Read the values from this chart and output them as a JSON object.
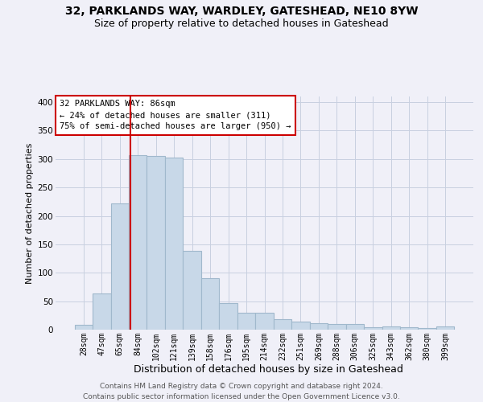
{
  "title": "32, PARKLANDS WAY, WARDLEY, GATESHEAD, NE10 8YW",
  "subtitle": "Size of property relative to detached houses in Gateshead",
  "xlabel": "Distribution of detached houses by size in Gateshead",
  "ylabel": "Number of detached properties",
  "categories": [
    "28sqm",
    "47sqm",
    "65sqm",
    "84sqm",
    "102sqm",
    "121sqm",
    "139sqm",
    "158sqm",
    "176sqm",
    "195sqm",
    "214sqm",
    "232sqm",
    "251sqm",
    "269sqm",
    "288sqm",
    "306sqm",
    "325sqm",
    "343sqm",
    "362sqm",
    "380sqm",
    "399sqm"
  ],
  "values": [
    8,
    63,
    222,
    307,
    305,
    302,
    139,
    90,
    47,
    30,
    30,
    19,
    14,
    11,
    10,
    10,
    4,
    5,
    4,
    3,
    5
  ],
  "bar_color": "#c8d8e8",
  "bar_edgecolor": "#a0b8cc",
  "bar_linewidth": 0.8,
  "vline_color": "#cc0000",
  "annotation_text_line1": "32 PARKLANDS WAY: 86sqm",
  "annotation_text_line2": "← 24% of detached houses are smaller (311)",
  "annotation_text_line3": "75% of semi-detached houses are larger (950) →",
  "annotation_boxcolor": "white",
  "annotation_edgecolor": "#cc0000",
  "footer_line1": "Contains HM Land Registry data © Crown copyright and database right 2024.",
  "footer_line2": "Contains public sector information licensed under the Open Government Licence v3.0.",
  "ylim": [
    0,
    410
  ],
  "background_color": "#f0f0f8",
  "grid_color": "#c8d0e0",
  "title_fontsize": 10,
  "subtitle_fontsize": 9,
  "ylabel_fontsize": 8,
  "xlabel_fontsize": 9,
  "tick_fontsize": 7,
  "annotation_fontsize": 7.5,
  "footer_fontsize": 6.5
}
